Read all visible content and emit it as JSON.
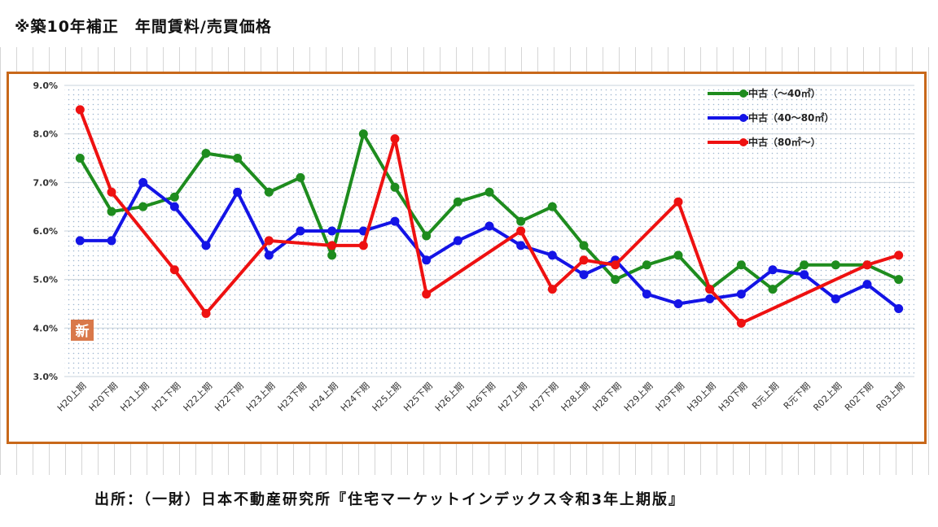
{
  "title": "※築10年補正　年間賃料/売買価格",
  "source": "出所：（一財）日本不動産研究所『住宅マーケットインデックス令和3年上期版』",
  "badge": "新",
  "colors": {
    "frame": "#c8681a",
    "green": "#1e8c1e",
    "blue": "#1414e6",
    "red": "#ee1111",
    "badge": "#d9784a"
  },
  "chart_data": {
    "type": "line",
    "title": "",
    "xlabel": "",
    "ylabel": "",
    "ylim": [
      3.0,
      9.0
    ],
    "y_ticks": [
      "3.0%",
      "4.0%",
      "5.0%",
      "6.0%",
      "7.0%",
      "8.0%",
      "9.0%"
    ],
    "grid": true,
    "legend_position": "top-right",
    "categories": [
      "H20上期",
      "H20下期",
      "H21上期",
      "H21下期",
      "H22上期",
      "H22下期",
      "H23上期",
      "H23下期",
      "H24上期",
      "H24下期",
      "H25上期",
      "H25下期",
      "H26上期",
      "H26下期",
      "H27上期",
      "H27下期",
      "H28上期",
      "H28下期",
      "H29上期",
      "H29下期",
      "H30上期",
      "H30下期",
      "R元上期",
      "R元下期",
      "R02上期",
      "R02下期",
      "R03上期"
    ],
    "series": [
      {
        "name": "中古（～40㎡）",
        "color": "#1e8c1e",
        "values": [
          7.5,
          6.4,
          6.5,
          6.7,
          7.6,
          7.5,
          6.8,
          7.1,
          5.5,
          8.0,
          6.9,
          5.9,
          6.6,
          6.8,
          6.2,
          6.5,
          5.7,
          5.0,
          5.3,
          5.5,
          4.8,
          5.3,
          4.8,
          5.3,
          5.3,
          5.3,
          5.0
        ]
      },
      {
        "name": "中古（40～80㎡）",
        "color": "#1414e6",
        "values": [
          5.8,
          5.8,
          7.0,
          6.5,
          5.7,
          6.8,
          5.5,
          6.0,
          6.0,
          6.0,
          6.2,
          5.4,
          5.8,
          6.1,
          5.7,
          5.5,
          5.1,
          5.4,
          4.7,
          4.5,
          4.6,
          4.7,
          5.2,
          5.1,
          4.6,
          4.9,
          4.4
        ]
      },
      {
        "name": "中古（80㎡～）",
        "color": "#ee1111",
        "values": [
          8.5,
          6.8,
          null,
          5.2,
          4.3,
          null,
          5.8,
          null,
          5.7,
          5.7,
          7.9,
          4.7,
          null,
          null,
          6.0,
          4.8,
          5.4,
          5.3,
          null,
          6.6,
          4.8,
          4.1,
          null,
          null,
          null,
          5.3,
          5.5
        ]
      }
    ]
  }
}
